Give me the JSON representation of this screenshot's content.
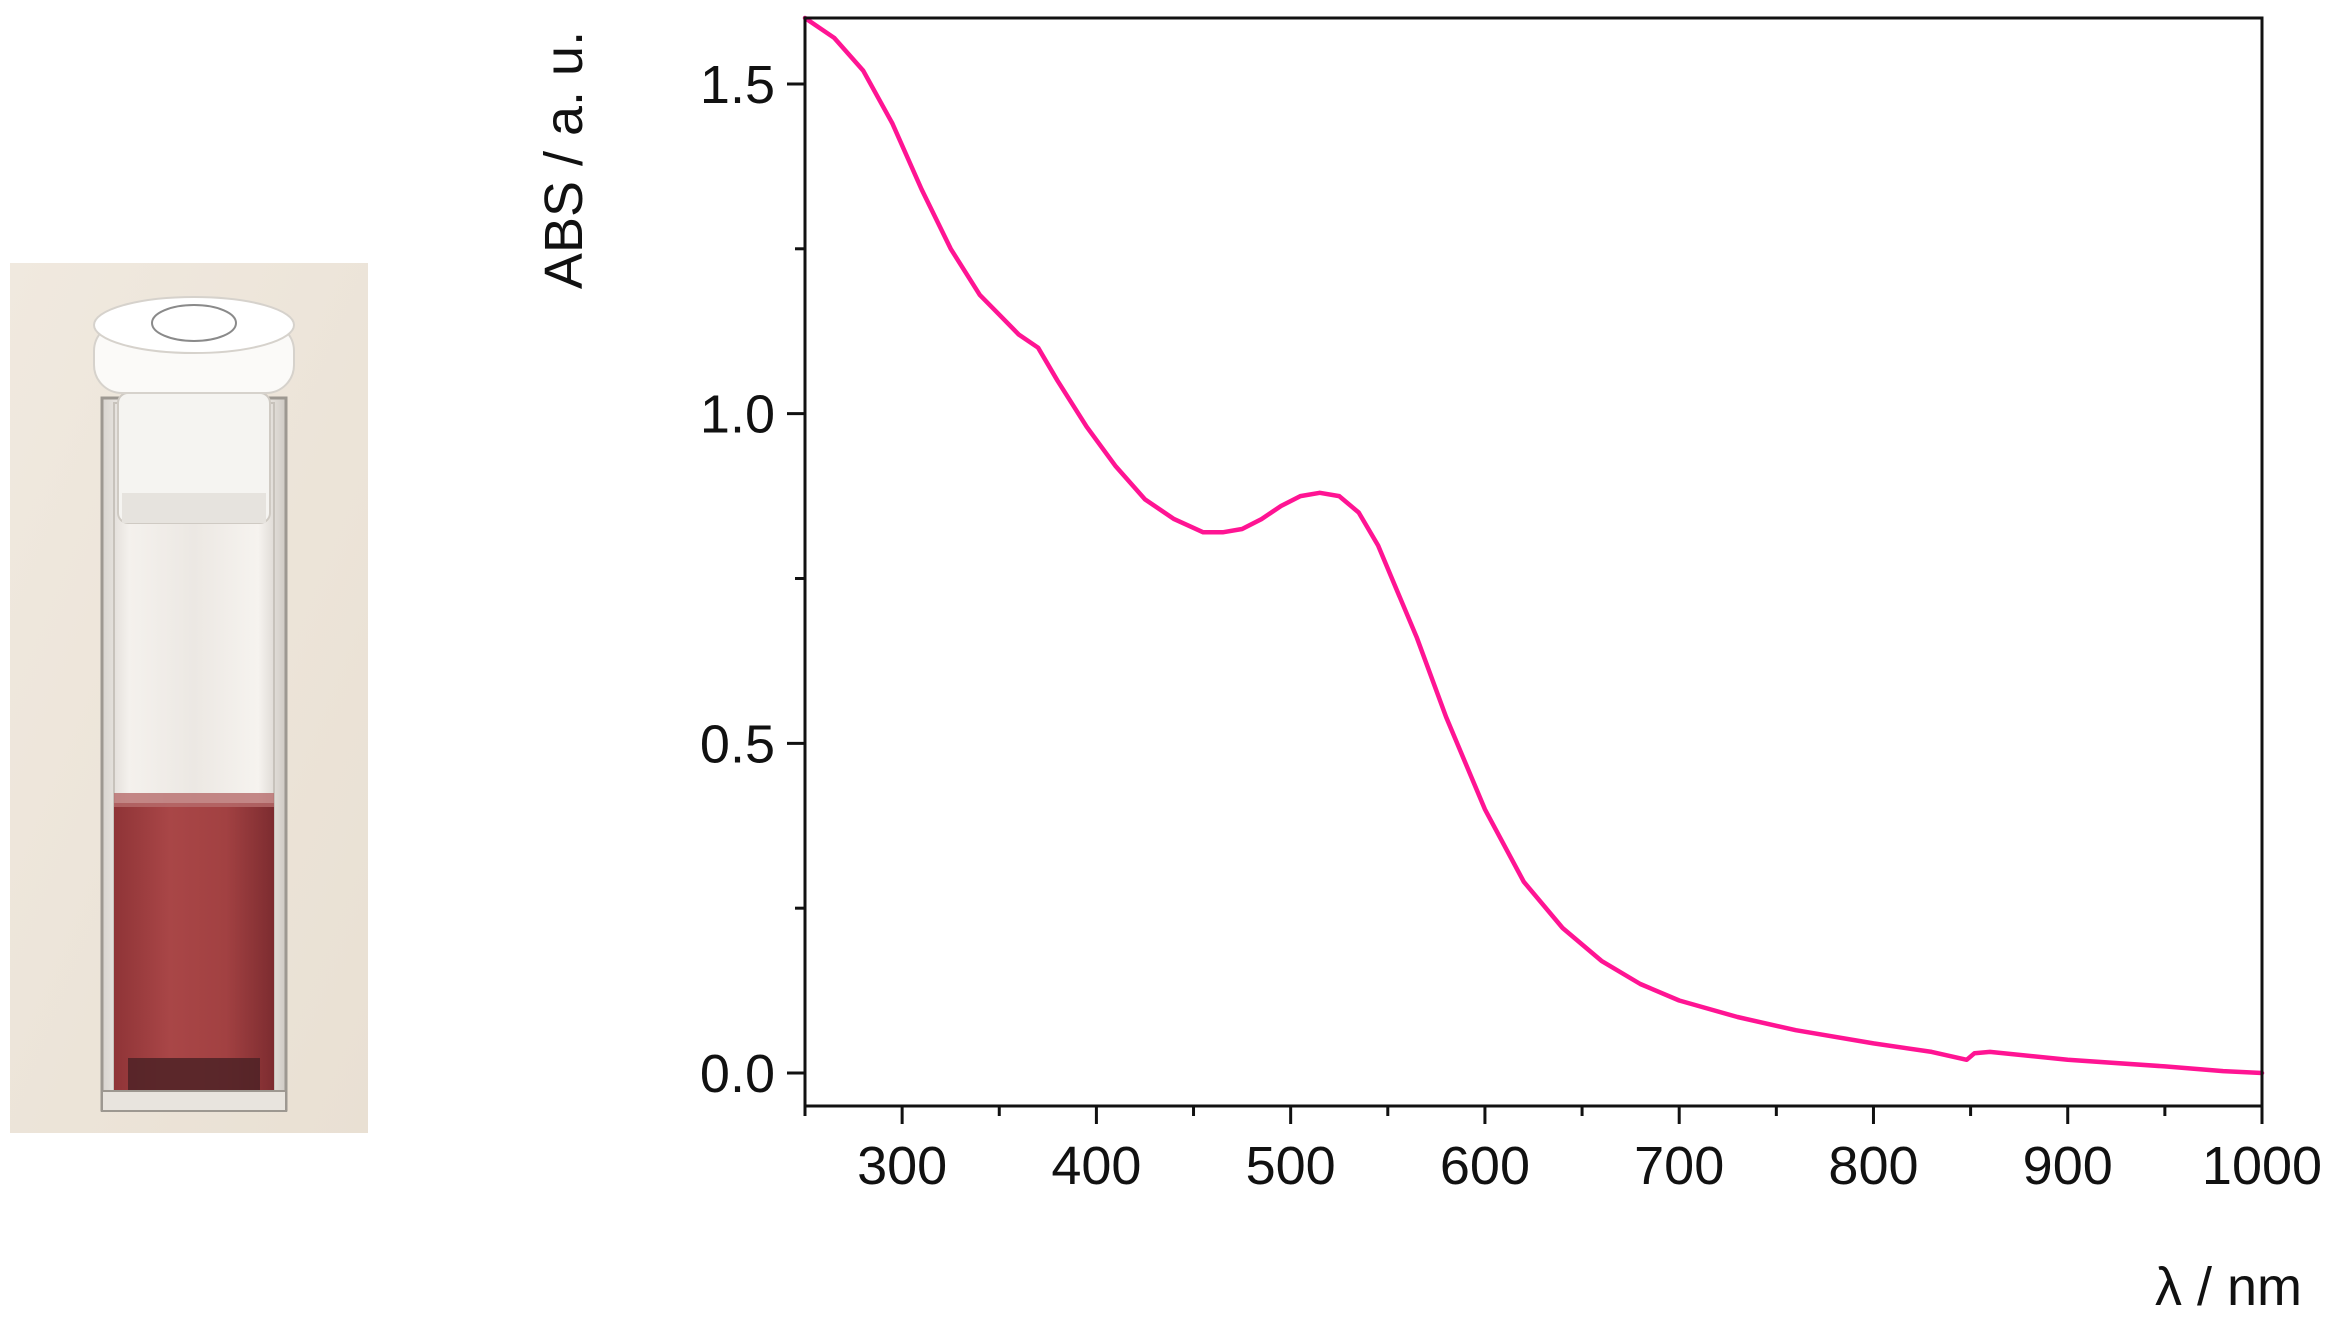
{
  "photo": {
    "icon": "cuvette-photo",
    "solution_color": "#a0403f"
  },
  "chart_data": {
    "type": "line",
    "title": "",
    "xlabel": "λ / nm",
    "ylabel": "ABS / a. u.",
    "xlim": [
      250,
      1000
    ],
    "ylim": [
      -0.05,
      1.6
    ],
    "xticks": [
      300,
      400,
      500,
      600,
      700,
      800,
      900,
      1000
    ],
    "yticks": [
      0.0,
      0.5,
      1.0,
      1.5
    ],
    "xtick_labels": [
      "300",
      "400",
      "500",
      "600",
      "700",
      "800",
      "900",
      "1000"
    ],
    "ytick_labels": [
      "0.0",
      "0.5",
      "1.0",
      "1.5"
    ],
    "grid": false,
    "legend": "none",
    "series": [
      {
        "color": "#ff1493",
        "x": [
          250,
          265,
          280,
          295,
          310,
          325,
          340,
          350,
          360,
          370,
          380,
          395,
          410,
          425,
          440,
          455,
          465,
          475,
          485,
          495,
          505,
          515,
          525,
          535,
          545,
          555,
          565,
          580,
          600,
          620,
          640,
          660,
          680,
          700,
          730,
          760,
          800,
          830,
          848,
          852,
          860,
          900,
          950,
          980,
          1000
        ],
        "y": [
          1.6,
          1.57,
          1.52,
          1.44,
          1.34,
          1.25,
          1.18,
          1.15,
          1.12,
          1.1,
          1.05,
          0.98,
          0.92,
          0.87,
          0.84,
          0.82,
          0.82,
          0.825,
          0.84,
          0.86,
          0.875,
          0.88,
          0.875,
          0.85,
          0.8,
          0.73,
          0.66,
          0.54,
          0.4,
          0.29,
          0.22,
          0.17,
          0.135,
          0.11,
          0.085,
          0.065,
          0.045,
          0.032,
          0.02,
          0.03,
          0.032,
          0.02,
          0.01,
          0.003,
          0.0
        ]
      }
    ]
  }
}
